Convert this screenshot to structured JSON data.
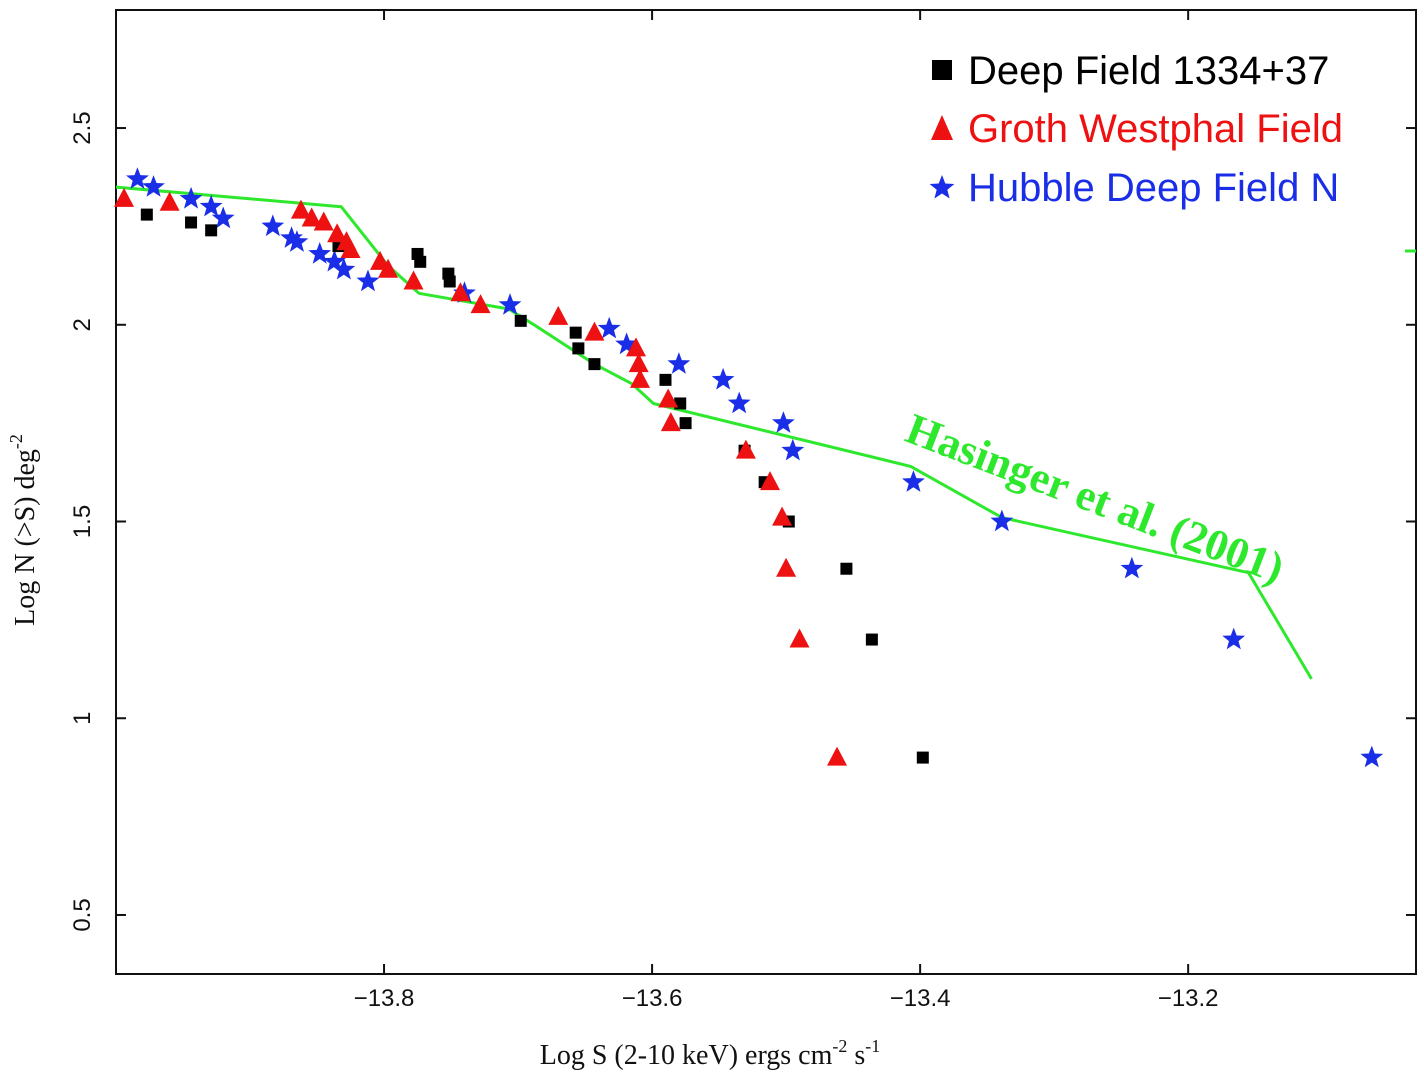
{
  "chart_data": {
    "type": "scatter",
    "title": "",
    "xlabel": "Log S (2-10 keV) ergs cm",
    "xlabel_parts": {
      "sup1": "-2",
      "mid": " s",
      "sup2": "-1"
    },
    "ylabel": "Log N (>S) deg",
    "ylabel_sup": "-2",
    "xlim": [
      -14.0,
      -13.03
    ],
    "ylim": [
      0.35,
      2.8
    ],
    "xticks": [
      -13.8,
      -13.6,
      -13.4,
      -13.2
    ],
    "xtick_labels": [
      "−13.8",
      "−13.6",
      "−13.4",
      "−13.2"
    ],
    "yticks": [
      0.5,
      1,
      1.5,
      2,
      2.5
    ],
    "ytick_labels": [
      "0.5",
      "1",
      "1.5",
      "2",
      "2.5"
    ],
    "series": [
      {
        "name": "Deep Field 1334+37",
        "marker": "square",
        "color": "#000000",
        "x": [
          -13.977,
          -13.944,
          -13.929,
          -13.834,
          -13.775,
          -13.773,
          -13.752,
          -13.751,
          -13.698,
          -13.657,
          -13.655,
          -13.643,
          -13.59,
          -13.579,
          -13.575,
          -13.531,
          -13.516,
          -13.498,
          -13.455,
          -13.436,
          -13.398
        ],
        "y": [
          2.28,
          2.26,
          2.24,
          2.2,
          2.18,
          2.16,
          2.13,
          2.11,
          2.01,
          1.98,
          1.94,
          1.9,
          1.86,
          1.8,
          1.75,
          1.68,
          1.6,
          1.5,
          1.38,
          1.2,
          0.9
        ]
      },
      {
        "name": "Groth Westphal Field",
        "marker": "triangle",
        "color": "#ee1111",
        "x": [
          -13.994,
          -13.96,
          -13.862,
          -13.854,
          -13.845,
          -13.835,
          -13.828,
          -13.825,
          -13.803,
          -13.797,
          -13.778,
          -13.743,
          -13.728,
          -13.67,
          -13.643,
          -13.612,
          -13.61,
          -13.609,
          -13.588,
          -13.586,
          -13.53,
          -13.512,
          -13.503,
          -13.5,
          -13.49,
          -13.462
        ],
        "y": [
          2.32,
          2.31,
          2.29,
          2.27,
          2.26,
          2.23,
          2.21,
          2.19,
          2.16,
          2.14,
          2.11,
          2.08,
          2.05,
          2.02,
          1.98,
          1.94,
          1.9,
          1.86,
          1.81,
          1.75,
          1.68,
          1.6,
          1.51,
          1.38,
          1.2,
          0.9
        ]
      },
      {
        "name": "Hubble Deep Field N",
        "marker": "star",
        "color": "#1a2ee8",
        "x": [
          -13.984,
          -13.972,
          -13.944,
          -13.929,
          -13.92,
          -13.883,
          -13.869,
          -13.865,
          -13.848,
          -13.837,
          -13.83,
          -13.812,
          -13.74,
          -13.706,
          -13.632,
          -13.619,
          -13.58,
          -13.547,
          -13.535,
          -13.502,
          -13.495,
          -13.405,
          -13.339,
          -13.242,
          -13.166,
          -13.063
        ],
        "y": [
          2.37,
          2.35,
          2.32,
          2.3,
          2.27,
          2.25,
          2.22,
          2.21,
          2.18,
          2.16,
          2.14,
          2.11,
          2.08,
          2.05,
          1.99,
          1.95,
          1.9,
          1.86,
          1.8,
          1.75,
          1.68,
          1.6,
          1.5,
          1.38,
          1.2,
          0.9
        ]
      }
    ],
    "model_line": {
      "name": "Hasinger et al. (2001)",
      "color": "#2ee82e",
      "x": [
        -14.0,
        -13.832,
        -13.797,
        -13.774,
        -13.707,
        -13.688,
        -13.643,
        -13.615,
        -13.599,
        -13.407,
        -13.339,
        -13.155,
        -13.108
      ],
      "y": [
        2.35,
        2.3,
        2.15,
        2.08,
        2.04,
        2.0,
        1.9,
        1.85,
        1.8,
        1.64,
        1.51,
        1.37,
        1.1
      ]
    },
    "legend": {
      "placement": "top-right",
      "entries": [
        "Deep Field 1334+37",
        "Groth Westphal Field",
        "Hubble Deep Field N"
      ]
    },
    "annotations": [
      {
        "text": "Hasinger et al. (2001)",
        "x": -13.33,
        "y": 1.72,
        "angle_deg": 21,
        "color": "#2ee82e"
      }
    ]
  }
}
